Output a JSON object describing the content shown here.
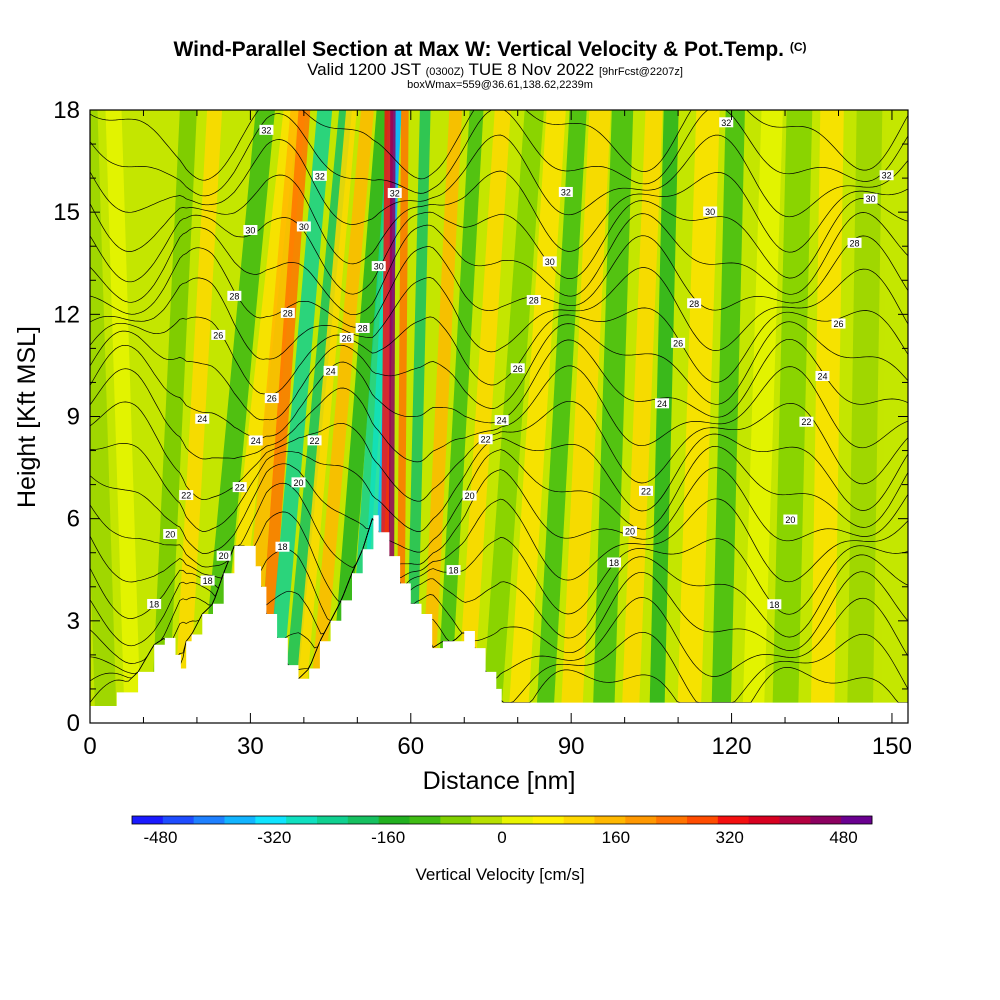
{
  "chart_data": {
    "type": "heatmap",
    "title": "Wind-Parallel Section at Max W: Vertical Velocity & Pot.Temp.",
    "title_suffix": "(C)",
    "subtitle_main": "Valid 1200 JST",
    "subtitle_utc": "(0300Z)",
    "subtitle_date": "TUE 8 Nov 2022",
    "subtitle_fcst": "[9hrFcst@2207z]",
    "subtitle2": "boxWmax=559@36.61,138.62,2239m",
    "xlabel": "Distance [nm]",
    "ylabel": "Height [Kft MSL]",
    "xlim": [
      0,
      153
    ],
    "ylim": [
      0,
      18
    ],
    "x_ticks": [
      "0",
      "30",
      "60",
      "90",
      "120",
      "150"
    ],
    "x_tick_values": [
      0,
      30,
      60,
      90,
      120,
      150
    ],
    "y_ticks": [
      "0",
      "3",
      "6",
      "9",
      "12",
      "15",
      "18"
    ],
    "y_tick_values": [
      0,
      3,
      6,
      9,
      12,
      15,
      18
    ],
    "colorbar": {
      "label": "Vertical Velocity [cm/s]",
      "min": -520,
      "max": 520,
      "tick_labels": [
        "-480",
        "-320",
        "-160",
        "0",
        "160",
        "320",
        "480"
      ],
      "tick_values": [
        -480,
        -320,
        -160,
        0,
        160,
        320,
        480
      ],
      "colors": [
        "#1a1aff",
        "#1e4cff",
        "#1e80ff",
        "#12b4ff",
        "#10e4ff",
        "#10e0c0",
        "#10d090",
        "#16c060",
        "#22b020",
        "#40bc14",
        "#80d000",
        "#b8e000",
        "#e8f400",
        "#fff200",
        "#ffd800",
        "#ffb800",
        "#ff9800",
        "#ff7400",
        "#ff4c00",
        "#f41010",
        "#d80020",
        "#b40040",
        "#8c0060",
        "#6a0090"
      ]
    },
    "terrain_kft": [
      [
        0,
        0.5
      ],
      [
        5,
        0.9
      ],
      [
        9,
        1.5
      ],
      [
        12,
        2.3
      ],
      [
        14,
        2.5
      ],
      [
        16,
        2.0
      ],
      [
        17,
        1.6
      ],
      [
        18,
        2.4
      ],
      [
        19,
        2.6
      ],
      [
        21,
        3.2
      ],
      [
        23,
        3.5
      ],
      [
        25,
        4.4
      ],
      [
        27,
        5.2
      ],
      [
        29,
        5.2
      ],
      [
        31,
        4.6
      ],
      [
        32,
        4.0
      ],
      [
        33,
        3.2
      ],
      [
        35,
        2.5
      ],
      [
        37,
        1.7
      ],
      [
        39,
        1.3
      ],
      [
        41,
        1.6
      ],
      [
        43,
        2.4
      ],
      [
        45,
        3.0
      ],
      [
        47,
        3.6
      ],
      [
        49,
        4.4
      ],
      [
        51,
        5.1
      ],
      [
        53,
        6.1
      ],
      [
        54,
        5.6
      ],
      [
        56,
        4.9
      ],
      [
        58,
        4.1
      ],
      [
        60,
        3.5
      ],
      [
        62,
        3.2
      ],
      [
        64,
        2.2
      ],
      [
        66,
        2.4
      ],
      [
        68,
        2.4
      ],
      [
        70,
        2.7
      ],
      [
        72,
        2.2
      ],
      [
        74,
        1.5
      ],
      [
        76,
        1.0
      ],
      [
        77,
        0.6
      ],
      [
        153,
        0.6
      ]
    ],
    "theta_contours_C": [
      {
        "label": "18",
        "base_kft": 4.8
      },
      {
        "label": "20",
        "base_kft": 6.6
      },
      {
        "label": "22",
        "base_kft": 8.3
      },
      {
        "label": "24",
        "base_kft": 9.9
      },
      {
        "label": "26",
        "base_kft": 11.4
      },
      {
        "label": "28",
        "base_kft": 12.9
      },
      {
        "label": "30",
        "base_kft": 14.6
      },
      {
        "label": "32",
        "base_kft": 16.4
      }
    ]
  }
}
